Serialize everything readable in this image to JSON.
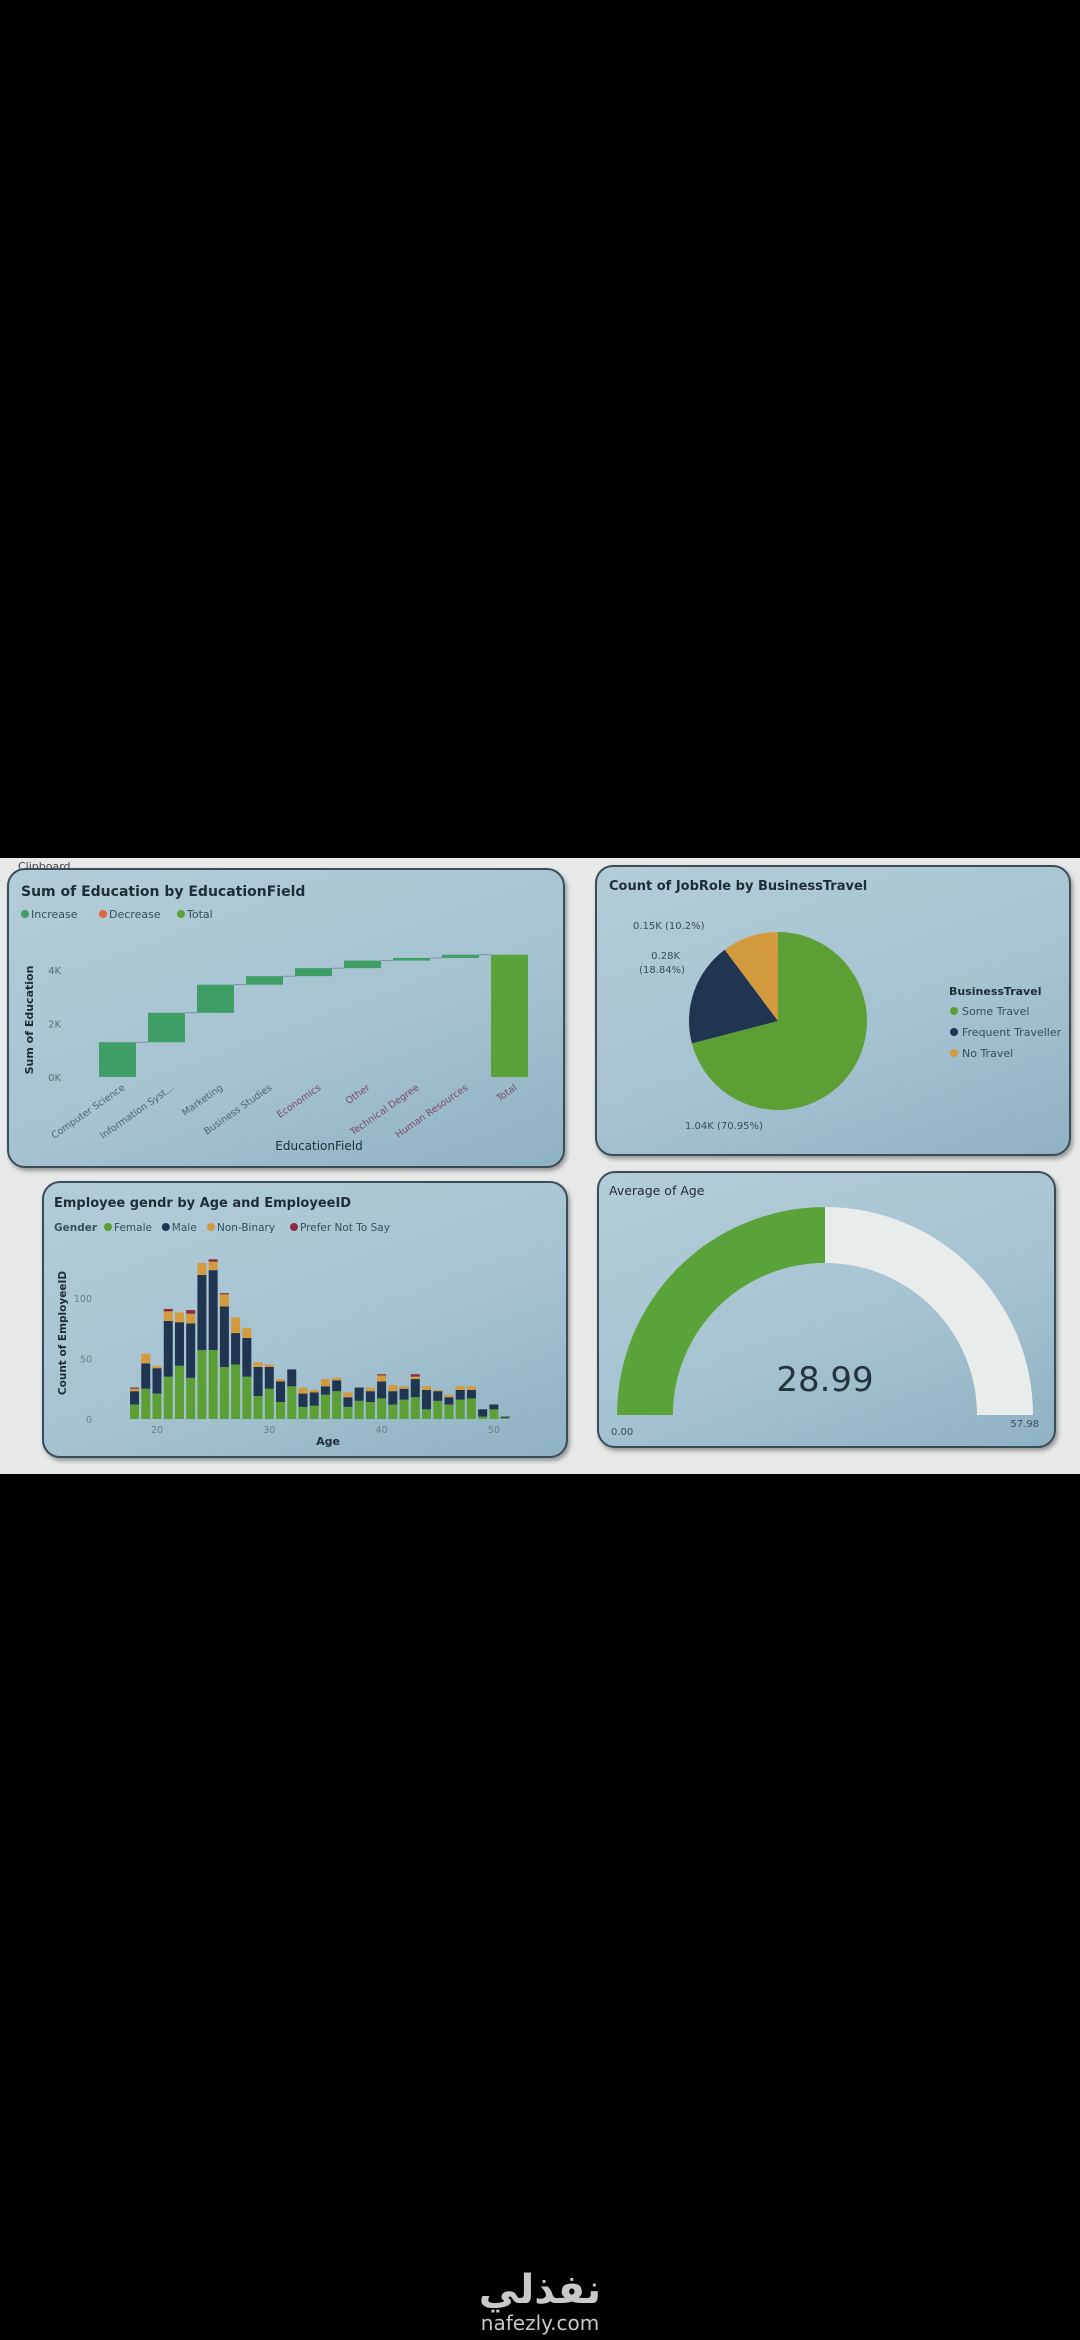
{
  "toolbar": {
    "clipboard_label": "Clipboard"
  },
  "colors": {
    "increase": "#3f9d66",
    "decrease": "#e0643c",
    "total": "#5aa33a",
    "female": "#5c9f34",
    "male": "#1f3550",
    "non_binary": "#d49a3e",
    "prefer_not": "#8c2c3c",
    "gauge_fill": "#5aa33a",
    "gauge_track": "#e8ecea"
  },
  "chart_data": [
    {
      "type": "bar",
      "subtype": "waterfall",
      "title": "Sum of Education by EducationField",
      "legend": [
        "Increase",
        "Decrease",
        "Total"
      ],
      "xlabel": "EducationField",
      "ylabel": "Sum of Education",
      "yticks": [
        "0K",
        "2K",
        "4K"
      ],
      "ylim": [
        0,
        4800
      ],
      "categories": [
        "Computer Science",
        "Information Syst...",
        "Marketing",
        "Business Studies",
        "Economics",
        "Other",
        "Technical Degree",
        "Human Resources",
        "Total"
      ],
      "values": [
        1300,
        1100,
        1050,
        320,
        300,
        280,
        100,
        120,
        4570
      ]
    },
    {
      "type": "pie",
      "title": "Count of JobRole by BusinessTravel",
      "legend_title": "BusinessTravel",
      "legend_position": "right",
      "slices": [
        {
          "name": "Some Travel",
          "value": 1.04,
          "percent": 70.95,
          "label": "1.04K (70.95%)"
        },
        {
          "name": "Frequent Traveller",
          "value": 0.28,
          "percent": 18.84,
          "label_value": "0.28K",
          "label_pct": "(18.84%)"
        },
        {
          "name": "No Travel",
          "value": 0.15,
          "percent": 10.2,
          "label": "0.15K (10.2%)"
        }
      ]
    },
    {
      "type": "bar",
      "subtype": "stacked",
      "title": "Employee gendr by Age and EmployeeID",
      "legend_title": "Gender",
      "legend_position": "top-left",
      "xlabel": "Age",
      "ylabel": "Count of EmployeeID",
      "xticks": [
        "20",
        "30",
        "40",
        "50"
      ],
      "yticks": [
        "0",
        "50",
        "100"
      ],
      "ylim": [
        0,
        140
      ],
      "x": [
        18,
        19,
        20,
        21,
        22,
        23,
        24,
        25,
        26,
        27,
        28,
        29,
        30,
        31,
        32,
        33,
        34,
        35,
        36,
        37,
        38,
        39,
        40,
        41,
        42,
        43,
        44,
        45,
        46,
        47,
        48,
        49,
        50,
        51
      ],
      "series": [
        {
          "name": "Female",
          "values": [
            12,
            25,
            21,
            35,
            44,
            34,
            57,
            57,
            43,
            45,
            35,
            19,
            25,
            14,
            27,
            10,
            11,
            20,
            23,
            10,
            15,
            14,
            17,
            12,
            16,
            18,
            8,
            15,
            12,
            16,
            17,
            2,
            8,
            1
          ]
        },
        {
          "name": "Male",
          "values": [
            11,
            21,
            21,
            46,
            36,
            45,
            62,
            66,
            50,
            26,
            32,
            24,
            18,
            17,
            14,
            11,
            11,
            7,
            9,
            8,
            11,
            9,
            14,
            11,
            9,
            15,
            16,
            8,
            6,
            8,
            7,
            6,
            4,
            1
          ]
        },
        {
          "name": "Non-Binary",
          "values": [
            2,
            8,
            2,
            8,
            8,
            8,
            10,
            7,
            10,
            13,
            8,
            4,
            2,
            2,
            0,
            5,
            2,
            6,
            2,
            4,
            0,
            3,
            5,
            5,
            2,
            2,
            3,
            1,
            2,
            3,
            3,
            0,
            0,
            0
          ]
        },
        {
          "name": "Prefer Not To Say",
          "values": [
            1,
            0,
            0,
            2,
            0,
            3,
            0,
            2,
            1,
            0,
            0,
            0,
            0,
            0,
            0,
            0,
            0,
            0,
            0,
            0,
            0,
            0,
            1,
            0,
            0,
            2,
            0,
            0,
            0,
            0,
            0,
            0,
            0,
            0
          ]
        }
      ]
    },
    {
      "type": "gauge",
      "title": "Average of Age",
      "value": 28.99,
      "value_label": "28.99",
      "min": 0,
      "max": 57.98,
      "min_label": "0.00",
      "max_label": "57.98"
    }
  ],
  "watermark": {
    "arabic": "نفذلي",
    "site": "nafezly.com"
  }
}
